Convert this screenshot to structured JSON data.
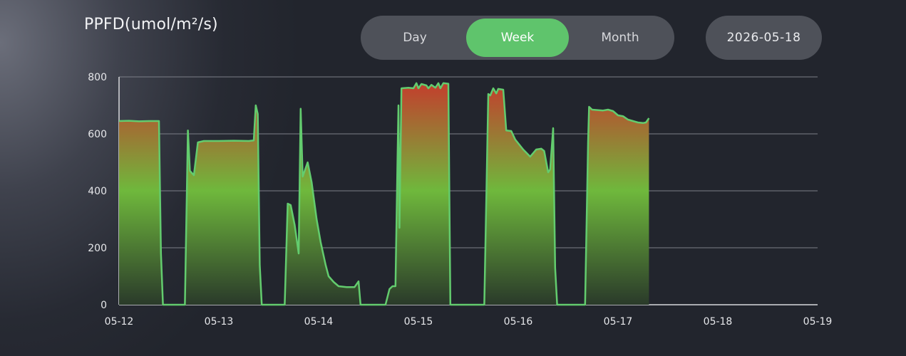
{
  "header": {
    "title": "PPFD(umol/m²/s)",
    "tabs": [
      {
        "label": "Day",
        "active": false
      },
      {
        "label": "Week",
        "active": true
      },
      {
        "label": "Month",
        "active": false
      }
    ],
    "date": "2026-05-18"
  },
  "colors": {
    "accent": "#5fc46c",
    "line": "#63cc6e",
    "gradient_top": "#c8372c",
    "gradient_mid": "#6fb83c",
    "gradient_bottom": "#2a3a2a"
  },
  "chart_data": {
    "type": "area",
    "title": "PPFD(umol/m²/s)",
    "xlabel": "",
    "ylabel": "",
    "xlim": [
      0,
      7
    ],
    "ylim": [
      0,
      800
    ],
    "yticks": [
      "0",
      "200",
      "400",
      "600",
      "800"
    ],
    "xticks": [
      "05-12",
      "05-13",
      "05-14",
      "05-15",
      "05-16",
      "05-17",
      "05-18",
      "05-19"
    ],
    "grid": true,
    "series": [
      {
        "points": [
          [
            0.0,
            645
          ],
          [
            0.1,
            646
          ],
          [
            0.2,
            644
          ],
          [
            0.3,
            645
          ],
          [
            0.4,
            645
          ],
          [
            0.4,
            645
          ],
          [
            0.42,
            180
          ],
          [
            0.44,
            0
          ],
          [
            0.66,
            0
          ],
          [
            0.69,
            612
          ],
          [
            0.71,
            470
          ],
          [
            0.75,
            455
          ],
          [
            0.79,
            570
          ],
          [
            0.85,
            575
          ],
          [
            1.0,
            575
          ],
          [
            1.15,
            576
          ],
          [
            1.3,
            575
          ],
          [
            1.35,
            577
          ],
          [
            1.37,
            700
          ],
          [
            1.39,
            670
          ],
          [
            1.41,
            140
          ],
          [
            1.43,
            0
          ],
          [
            1.66,
            0
          ],
          [
            1.69,
            355
          ],
          [
            1.72,
            350
          ],
          [
            1.76,
            280
          ],
          [
            1.8,
            180
          ],
          [
            1.82,
            688
          ],
          [
            1.84,
            450
          ],
          [
            1.89,
            500
          ],
          [
            1.93,
            430
          ],
          [
            1.98,
            300
          ],
          [
            2.02,
            220
          ],
          [
            2.07,
            140
          ],
          [
            2.1,
            100
          ],
          [
            2.15,
            80
          ],
          [
            2.2,
            65
          ],
          [
            2.28,
            62
          ],
          [
            2.36,
            62
          ],
          [
            2.4,
            82
          ],
          [
            2.42,
            0
          ],
          [
            2.67,
            0
          ],
          [
            2.71,
            55
          ],
          [
            2.74,
            65
          ],
          [
            2.77,
            65
          ],
          [
            2.79,
            500
          ],
          [
            2.8,
            700
          ],
          [
            2.81,
            270
          ],
          [
            2.83,
            760
          ],
          [
            2.9,
            762
          ],
          [
            2.95,
            760
          ],
          [
            2.98,
            778
          ],
          [
            3.0,
            760
          ],
          [
            3.03,
            775
          ],
          [
            3.08,
            770
          ],
          [
            3.1,
            760
          ],
          [
            3.13,
            772
          ],
          [
            3.17,
            762
          ],
          [
            3.2,
            778
          ],
          [
            3.22,
            760
          ],
          [
            3.25,
            778
          ],
          [
            3.3,
            776
          ],
          [
            3.32,
            0
          ],
          [
            3.66,
            0
          ],
          [
            3.7,
            740
          ],
          [
            3.72,
            735
          ],
          [
            3.75,
            760
          ],
          [
            3.78,
            742
          ],
          [
            3.8,
            758
          ],
          [
            3.85,
            755
          ],
          [
            3.88,
            612
          ],
          [
            3.93,
            610
          ],
          [
            3.97,
            580
          ],
          [
            4.05,
            545
          ],
          [
            4.12,
            520
          ],
          [
            4.18,
            545
          ],
          [
            4.23,
            548
          ],
          [
            4.26,
            540
          ],
          [
            4.3,
            465
          ],
          [
            4.32,
            475
          ],
          [
            4.35,
            620
          ],
          [
            4.37,
            130
          ],
          [
            4.39,
            0
          ],
          [
            4.67,
            0
          ],
          [
            4.7,
            570
          ],
          [
            4.71,
            695
          ],
          [
            4.74,
            685
          ],
          [
            4.85,
            682
          ],
          [
            4.9,
            685
          ],
          [
            4.95,
            680
          ],
          [
            5.0,
            665
          ],
          [
            5.05,
            662
          ],
          [
            5.1,
            650
          ],
          [
            5.15,
            645
          ],
          [
            5.2,
            640
          ],
          [
            5.25,
            638
          ],
          [
            5.28,
            640
          ],
          [
            5.31,
            655
          ]
        ]
      }
    ]
  }
}
